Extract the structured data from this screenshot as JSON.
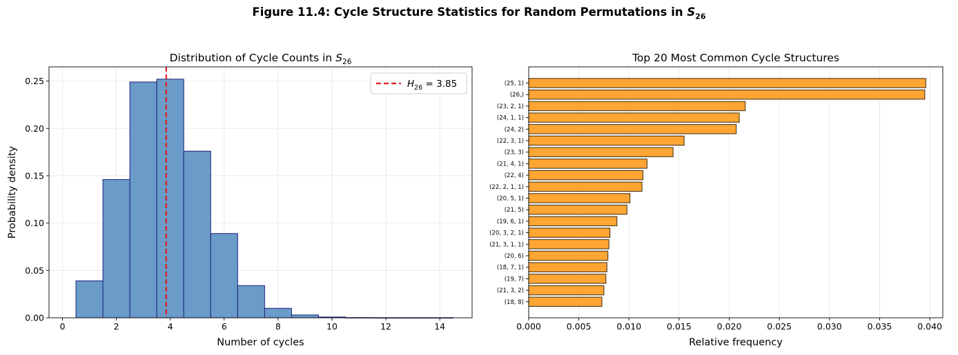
{
  "figure": {
    "title_main": "Figure 11.4: Cycle Structure Statistics for Random Permutations in ",
    "title_sym": "S",
    "title_sub": "26"
  },
  "chart_data": [
    {
      "type": "bar",
      "title_main": "Distribution of Cycle Counts in ",
      "title_sym": "S",
      "title_sub": "26",
      "xlabel": "Number of cycles",
      "ylabel": "Probability density",
      "xlim": [
        -0.5,
        15.2
      ],
      "ylim": [
        0,
        0.265
      ],
      "xticks": [
        0,
        2,
        4,
        6,
        8,
        10,
        12,
        14
      ],
      "yticks": [
        0.0,
        0.05,
        0.1,
        0.15,
        0.2,
        0.25
      ],
      "ytick_labels": [
        "0.00",
        "0.05",
        "0.10",
        "0.15",
        "0.20",
        "0.25"
      ],
      "grid": true,
      "bins": [
        {
          "left": 0.5,
          "right": 1.5,
          "value": 0.039
        },
        {
          "left": 1.5,
          "right": 2.5,
          "value": 0.146
        },
        {
          "left": 2.5,
          "right": 3.5,
          "value": 0.249
        },
        {
          "left": 3.5,
          "right": 4.5,
          "value": 0.252
        },
        {
          "left": 4.5,
          "right": 5.5,
          "value": 0.176
        },
        {
          "left": 5.5,
          "right": 6.5,
          "value": 0.089
        },
        {
          "left": 6.5,
          "right": 7.5,
          "value": 0.034
        },
        {
          "left": 7.5,
          "right": 8.5,
          "value": 0.01
        },
        {
          "left": 8.5,
          "right": 9.5,
          "value": 0.003
        },
        {
          "left": 9.5,
          "right": 10.5,
          "value": 0.0008
        },
        {
          "left": 10.5,
          "right": 11.5,
          "value": 0.0002
        },
        {
          "left": 11.5,
          "right": 12.5,
          "value": 0.0001
        },
        {
          "left": 12.5,
          "right": 13.5,
          "value": 0.0001
        },
        {
          "left": 13.5,
          "right": 14.5,
          "value": 0.0001
        }
      ],
      "vline": {
        "x": 3.85,
        "legend_sym": "H",
        "legend_sub": "26",
        "legend_rest": " = 3.85"
      },
      "legend_position": "top-right",
      "colors": {
        "bar_fill": "#6b9bc8",
        "bar_edge": "#1a237e",
        "vline": "#e31a1c",
        "grid": "#e6e6e6"
      }
    },
    {
      "type": "bar",
      "orientation": "horizontal",
      "title": "Top 20 Most Common Cycle Structures",
      "xlabel": "Relative frequency",
      "ylabel": "",
      "xlim": [
        0,
        0.0413
      ],
      "xticks": [
        0.0,
        0.005,
        0.01,
        0.015,
        0.02,
        0.025,
        0.03,
        0.035,
        0.04
      ],
      "xtick_labels": [
        "0.000",
        "0.005",
        "0.010",
        "0.015",
        "0.020",
        "0.025",
        "0.030",
        "0.035",
        "0.040"
      ],
      "grid": true,
      "categories": [
        "(25, 1)",
        "(26,)",
        "(23, 2, 1)",
        "(24, 1, 1)",
        "(24, 2)",
        "(22, 3, 1)",
        "(23, 3)",
        "(21, 4, 1)",
        "(22, 4)",
        "(22, 2, 1, 1)",
        "(20, 5, 1)",
        "(21, 5)",
        "(19, 6, 1)",
        "(20, 3, 2, 1)",
        "(21, 3, 1, 1)",
        "(20, 6)",
        "(18, 7, 1)",
        "(19, 7)",
        "(21, 3, 2)",
        "(18, 8)"
      ],
      "values": [
        0.0396,
        0.0395,
        0.0216,
        0.021,
        0.0207,
        0.0155,
        0.0144,
        0.0118,
        0.0114,
        0.0113,
        0.0101,
        0.0098,
        0.0088,
        0.0081,
        0.008,
        0.0079,
        0.0078,
        0.0077,
        0.0075,
        0.0073
      ],
      "colors": {
        "bar_fill": "#ffa533",
        "bar_edge": "#3a2a10",
        "grid": "#e6e6e6"
      }
    }
  ]
}
